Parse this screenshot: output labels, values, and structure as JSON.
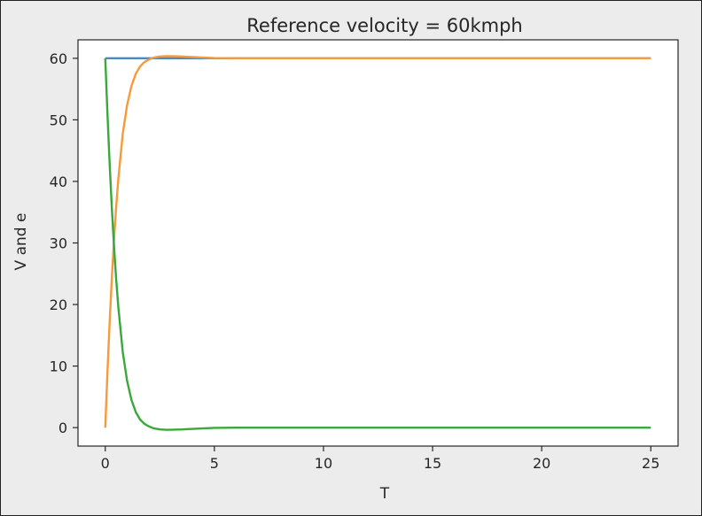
{
  "chart_data": {
    "type": "line",
    "title": "Reference velocity = 60kmph",
    "xlabel": "T",
    "ylabel": "V and e",
    "xlim": [
      -1.25,
      26.25
    ],
    "ylim": [
      -3,
      63
    ],
    "x_ticks": [
      0,
      5,
      10,
      15,
      20,
      25
    ],
    "x_tick_labels": [
      "0",
      "5",
      "10",
      "15",
      "20",
      "25"
    ],
    "y_ticks": [
      0,
      10,
      20,
      30,
      40,
      50,
      60
    ],
    "y_tick_labels": [
      "0",
      "10",
      "20",
      "30",
      "40",
      "50",
      "60"
    ],
    "grid": false,
    "legend": "none",
    "series": [
      {
        "color": "#4a8ac4",
        "x": [
          0,
          25
        ],
        "y": [
          60,
          60
        ]
      },
      {
        "color": "#f79a3a",
        "x": [
          0,
          0.1,
          0.2,
          0.3,
          0.4,
          0.5,
          0.6,
          0.8,
          1.0,
          1.2,
          1.4,
          1.6,
          1.8,
          2.0,
          2.2,
          2.5,
          2.8,
          3.0,
          3.5,
          4.0,
          5.0,
          6.0,
          8.0,
          10.0,
          15.0,
          20.0,
          25.0
        ],
        "y": [
          0,
          9.0,
          17.1,
          24.3,
          30.5,
          35.9,
          40.5,
          47.7,
          52.4,
          55.5,
          57.5,
          58.7,
          59.4,
          59.8,
          60.1,
          60.3,
          60.35,
          60.35,
          60.3,
          60.2,
          60.05,
          60.0,
          60.0,
          60.0,
          60.0,
          60.0,
          60.0
        ]
      },
      {
        "color": "#3aa83a",
        "x": [
          0,
          0.1,
          0.2,
          0.3,
          0.4,
          0.5,
          0.6,
          0.8,
          1.0,
          1.2,
          1.4,
          1.6,
          1.8,
          2.0,
          2.2,
          2.5,
          2.8,
          3.0,
          3.5,
          4.0,
          5.0,
          6.0,
          8.0,
          10.0,
          15.0,
          20.0,
          25.0
        ],
        "y": [
          60,
          51.0,
          42.9,
          35.7,
          29.5,
          24.1,
          19.5,
          12.3,
          7.6,
          4.5,
          2.5,
          1.3,
          0.6,
          0.2,
          -0.1,
          -0.3,
          -0.35,
          -0.35,
          -0.3,
          -0.2,
          -0.05,
          0,
          0,
          0,
          0,
          0,
          0
        ]
      }
    ]
  }
}
